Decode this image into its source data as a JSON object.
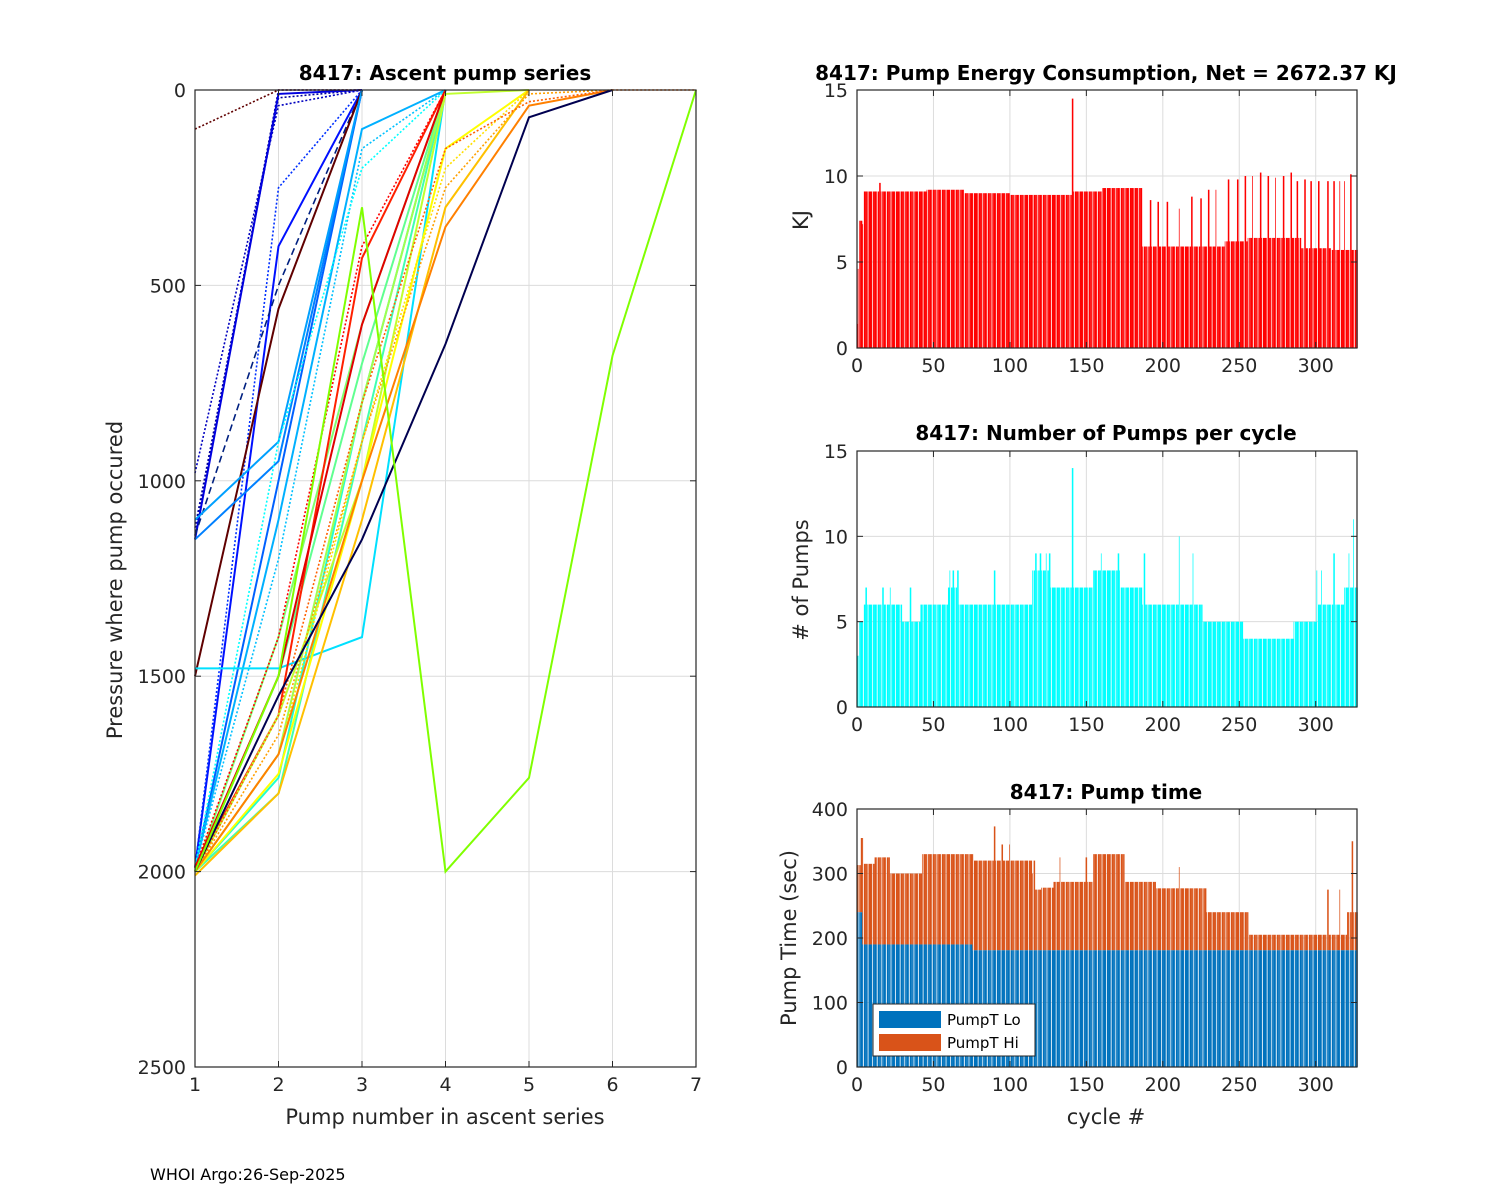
{
  "footer": "WHOI Argo:26-Sep-2025",
  "chart_data": [
    {
      "id": "ascent",
      "type": "line",
      "title": "8417: Ascent pump series",
      "xlabel": "Pump number in ascent series",
      "ylabel": "Pressure where pump occured",
      "xlim": [
        1,
        7
      ],
      "ylim": [
        0,
        2500
      ],
      "y_reversed": true,
      "xticks": [
        1,
        2,
        3,
        4,
        5,
        6,
        7
      ],
      "yticks": [
        0,
        500,
        1000,
        1500,
        2000,
        2500
      ],
      "grid": true,
      "colormap": "jet",
      "series_note": "One line per profile cycle, colored by cycle index (jet colormap); representative profiles listed",
      "series": [
        {
          "color": "#00008f",
          "style": "dotted",
          "y": [
            1140,
            0,
            0
          ]
        },
        {
          "color": "#00009f",
          "style": "dotted",
          "y": [
            1120,
            20,
            0
          ]
        },
        {
          "color": "#0000bf",
          "style": "dotted",
          "y": [
            980,
            40,
            0
          ]
        },
        {
          "color": "#0000df",
          "style": "solid",
          "y": [
            1150,
            10,
            0
          ]
        },
        {
          "color": "#0010ff",
          "style": "solid",
          "y": [
            1990,
            400,
            0
          ]
        },
        {
          "color": "#0030ff",
          "style": "dotted",
          "y": [
            1990,
            250,
            0
          ]
        },
        {
          "color": "#002080",
          "style": "dashed",
          "y": [
            1140,
            500,
            0
          ]
        },
        {
          "color": "#600000",
          "style": "dotted",
          "y": [
            100,
            0,
            0
          ]
        },
        {
          "color": "#600000",
          "style": "solid",
          "y": [
            1500,
            560,
            0
          ]
        },
        {
          "color": "#0060ff",
          "style": "solid",
          "y": [
            1990,
            1000,
            0
          ]
        },
        {
          "color": "#0080ff",
          "style": "solid",
          "y": [
            1150,
            950,
            0
          ]
        },
        {
          "color": "#00a0ff",
          "style": "solid",
          "y": [
            1100,
            900,
            0
          ]
        },
        {
          "color": "#00b0ff",
          "style": "solid",
          "y": [
            1990,
            1100,
            100,
            0
          ]
        },
        {
          "color": "#00c0ff",
          "style": "dotted",
          "y": [
            1990,
            1200,
            150,
            0
          ]
        },
        {
          "color": "#00e0ff",
          "style": "solid",
          "y": [
            1480,
            1480,
            1400,
            0
          ]
        },
        {
          "color": "#00ffff",
          "style": "dotted",
          "y": [
            1990,
            900,
            200,
            0
          ]
        },
        {
          "color": "#20ffd0",
          "style": "solid",
          "y": [
            2000,
            1760,
            800,
            0
          ]
        },
        {
          "color": "#40ffb0",
          "style": "solid",
          "y": [
            2000,
            1800,
            900,
            0
          ]
        },
        {
          "color": "#60ff90",
          "style": "solid",
          "y": [
            2000,
            1500,
            700,
            0
          ]
        },
        {
          "color": "#80ff70",
          "style": "solid",
          "y": [
            2000,
            1400,
            600,
            0
          ]
        },
        {
          "color": "#a0ff50",
          "style": "solid",
          "y": [
            2000,
            1700,
            800,
            0
          ]
        },
        {
          "color": "#ff2000",
          "style": "solid",
          "y": [
            1990,
            1600,
            430,
            0
          ]
        },
        {
          "color": "#e00000",
          "style": "solid",
          "y": [
            1990,
            1500,
            600,
            0
          ]
        },
        {
          "color": "#ff0000",
          "style": "dotted",
          "y": [
            1990,
            1400,
            400,
            0
          ]
        },
        {
          "color": "#c0ff30",
          "style": "solid",
          "y": [
            2000,
            1600,
            1000,
            10,
            0
          ]
        },
        {
          "color": "#ffff00",
          "style": "solid",
          "y": [
            2000,
            1750,
            1000,
            150,
            0
          ]
        },
        {
          "color": "#ffe000",
          "style": "dotted",
          "y": [
            2000,
            1700,
            900,
            200,
            0
          ]
        },
        {
          "color": "#ffc000",
          "style": "solid",
          "y": [
            2010,
            1800,
            1100,
            300,
            0
          ]
        },
        {
          "color": "#ffa000",
          "style": "dotted",
          "y": [
            2000,
            1650,
            900,
            250,
            10,
            0
          ]
        },
        {
          "color": "#ff8000",
          "style": "solid",
          "y": [
            2000,
            1700,
            1000,
            350,
            40,
            0
          ]
        },
        {
          "color": "#ff6000",
          "style": "dotted",
          "y": [
            2000,
            1600,
            800,
            150,
            30,
            0,
            0
          ]
        },
        {
          "color": "#000050",
          "style": "solid",
          "y": [
            2000,
            1550,
            1150,
            650,
            70,
            0
          ]
        },
        {
          "color": "#80ff00",
          "style": "solid",
          "y": [
            2000,
            1500,
            300,
            2000,
            1760,
            680,
            0
          ]
        }
      ]
    },
    {
      "id": "energy",
      "type": "bar",
      "title": "8417: Pump Energy Consumption,  Net = 2672.37 KJ",
      "xlabel": "",
      "ylabel": "KJ",
      "xlim": [
        0,
        327
      ],
      "ylim": [
        0,
        15
      ],
      "xticks": [
        0,
        50,
        100,
        150,
        200,
        250,
        300
      ],
      "yticks": [
        0,
        5,
        10,
        15
      ],
      "grid": true,
      "color": "#ff0000",
      "net_total_kj": 2672.37,
      "runs_note": "Per-cycle values summarized as runs [start_cycle, end_cycle, value_KJ]",
      "runs": [
        [
          0,
          0,
          1.4
        ],
        [
          1,
          1,
          4.6
        ],
        [
          2,
          3,
          7.4
        ],
        [
          4,
          4,
          7.2
        ],
        [
          5,
          14,
          9.1
        ],
        [
          15,
          15,
          9.6
        ],
        [
          16,
          45,
          9.1
        ],
        [
          46,
          70,
          9.2
        ],
        [
          71,
          100,
          9.0
        ],
        [
          101,
          140,
          8.9
        ],
        [
          141,
          141,
          14.5
        ],
        [
          142,
          160,
          9.1
        ],
        [
          161,
          186,
          9.3
        ],
        [
          187,
          215,
          5.9
        ],
        [
          216,
          240,
          5.9
        ],
        [
          241,
          255,
          6.2
        ],
        [
          256,
          290,
          6.4
        ],
        [
          291,
          310,
          5.8
        ],
        [
          311,
          327,
          5.7
        ]
      ],
      "spikes_note": "Periodic taller bars interleaved after cycle 186",
      "spikes": [
        [
          192,
          8.6
        ],
        [
          197,
          8.5
        ],
        [
          203,
          8.5
        ],
        [
          211,
          8.1
        ],
        [
          219,
          8.8
        ],
        [
          225,
          8.7
        ],
        [
          230,
          9.2
        ],
        [
          235,
          9.2
        ],
        [
          243,
          9.8
        ],
        [
          249,
          9.8
        ],
        [
          254,
          10.0
        ],
        [
          259,
          10.0
        ],
        [
          264,
          10.2
        ],
        [
          269,
          10.0
        ],
        [
          274,
          9.9
        ],
        [
          279,
          10.0
        ],
        [
          284,
          10.2
        ],
        [
          288,
          9.7
        ],
        [
          293,
          9.8
        ],
        [
          297,
          9.7
        ],
        [
          302,
          9.7
        ],
        [
          308,
          9.7
        ],
        [
          312,
          9.7
        ],
        [
          316,
          9.7
        ],
        [
          319,
          9.7
        ],
        [
          323,
          10.1
        ]
      ]
    },
    {
      "id": "pumps",
      "type": "bar",
      "title": "8417: Number of Pumps per cycle",
      "xlabel": "",
      "ylabel": "# of Pumps",
      "xlim": [
        0,
        327
      ],
      "ylim": [
        0,
        15
      ],
      "xticks": [
        0,
        50,
        100,
        150,
        200,
        250,
        300
      ],
      "yticks": [
        0,
        5,
        10,
        15
      ],
      "grid": true,
      "color": "#00ffff",
      "runs_note": "Per-cycle values summarized as runs [start_cycle, end_cycle, count]",
      "runs": [
        [
          0,
          1,
          3
        ],
        [
          2,
          4,
          5
        ],
        [
          5,
          29,
          6
        ],
        [
          30,
          41,
          5
        ],
        [
          42,
          59,
          6
        ],
        [
          60,
          66,
          7
        ],
        [
          67,
          103,
          6
        ],
        [
          104,
          114,
          6
        ],
        [
          115,
          126,
          8
        ],
        [
          127,
          140,
          7
        ],
        [
          141,
          141,
          14
        ],
        [
          142,
          154,
          7
        ],
        [
          155,
          172,
          8
        ],
        [
          173,
          186,
          7
        ],
        [
          187,
          226,
          6
        ],
        [
          227,
          252,
          5
        ],
        [
          253,
          285,
          4
        ],
        [
          286,
          300,
          5
        ],
        [
          301,
          318,
          6
        ],
        [
          319,
          324,
          7
        ],
        [
          325,
          325,
          11
        ],
        [
          326,
          327,
          7
        ]
      ],
      "spikes": [
        [
          6,
          7
        ],
        [
          17,
          7
        ],
        [
          22,
          7
        ],
        [
          35,
          7
        ],
        [
          61,
          8
        ],
        [
          63,
          8
        ],
        [
          66,
          8
        ],
        [
          90,
          8
        ],
        [
          117,
          9
        ],
        [
          120,
          9
        ],
        [
          124,
          9
        ],
        [
          126,
          9
        ],
        [
          160,
          9
        ],
        [
          171,
          9
        ],
        [
          188,
          9
        ],
        [
          211,
          10
        ],
        [
          220,
          9
        ],
        [
          301,
          8
        ],
        [
          304,
          8
        ],
        [
          312,
          9
        ],
        [
          322,
          9
        ]
      ]
    },
    {
      "id": "pumptime",
      "type": "bar",
      "stacked": true,
      "title": "8417: Pump time",
      "xlabel": "cycle #",
      "ylabel": "Pump Time (sec)",
      "xlim": [
        0,
        327
      ],
      "ylim": [
        0,
        400
      ],
      "xticks": [
        0,
        50,
        100,
        150,
        200,
        250,
        300
      ],
      "yticks": [
        0,
        100,
        200,
        300,
        400
      ],
      "grid": true,
      "legend": {
        "position": "bottom-left",
        "entries": [
          {
            "label": "PumpT Lo",
            "color": "#0072bd"
          },
          {
            "label": "PumpT Hi",
            "color": "#d95319"
          }
        ]
      },
      "lo_runs": [
        [
          0,
          3,
          240
        ],
        [
          4,
          75,
          190
        ],
        [
          76,
          327,
          181
        ]
      ],
      "total_runs_note": "Total stacked height (Lo + Hi) as runs [start_cycle, end_cycle, seconds]",
      "total_runs": [
        [
          0,
          2,
          313
        ],
        [
          3,
          4,
          355
        ],
        [
          5,
          11,
          315
        ],
        [
          12,
          21,
          325
        ],
        [
          22,
          42,
          300
        ],
        [
          43,
          76,
          330
        ],
        [
          77,
          95,
          320
        ],
        [
          96,
          116,
          320
        ],
        [
          117,
          120,
          275
        ],
        [
          121,
          128,
          278
        ],
        [
          129,
          150,
          287
        ],
        [
          151,
          154,
          287
        ],
        [
          155,
          175,
          330
        ],
        [
          176,
          195,
          287
        ],
        [
          196,
          216,
          277
        ],
        [
          217,
          228,
          277
        ],
        [
          229,
          237,
          240
        ],
        [
          238,
          256,
          240
        ],
        [
          257,
          277,
          205
        ],
        [
          278,
          297,
          205
        ],
        [
          298,
          320,
          205
        ],
        [
          321,
          327,
          240
        ]
      ],
      "spikes": [
        [
          90,
          373
        ],
        [
          95,
          345
        ],
        [
          100,
          345
        ],
        [
          115,
          300
        ],
        [
          133,
          325
        ],
        [
          150,
          325
        ],
        [
          211,
          310
        ],
        [
          237,
          240
        ],
        [
          256,
          240
        ],
        [
          308,
          275
        ],
        [
          316,
          275
        ],
        [
          324,
          350
        ]
      ]
    }
  ]
}
